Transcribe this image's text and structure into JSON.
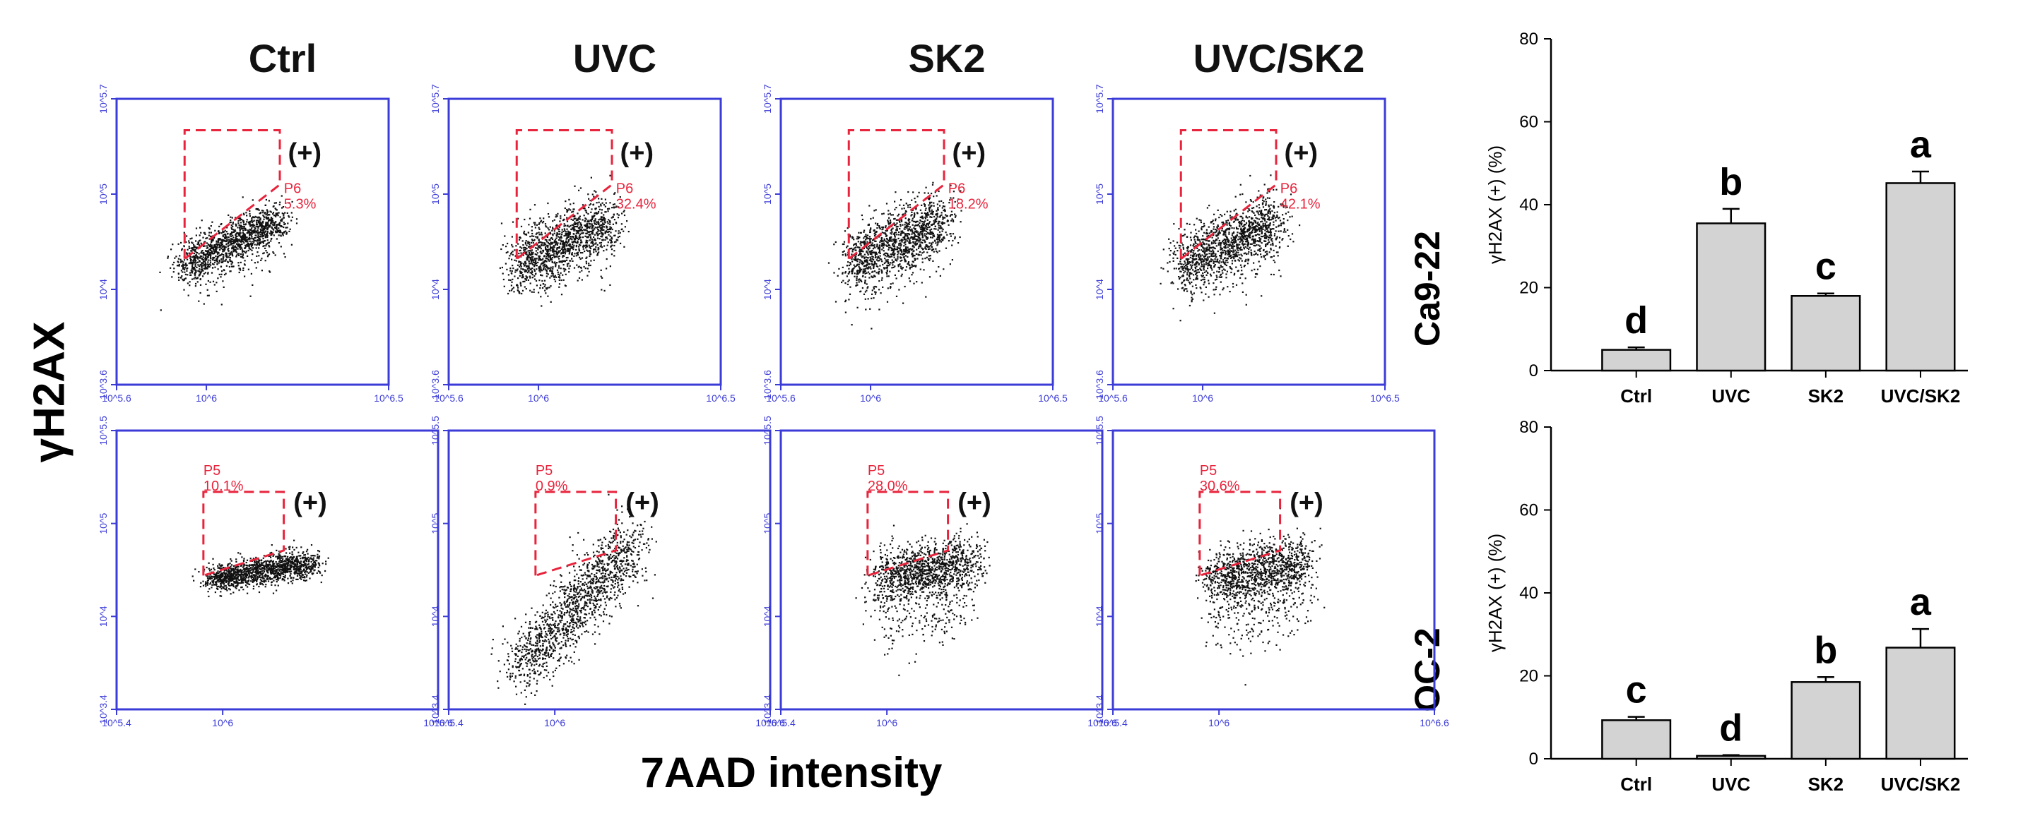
{
  "figure": {
    "y_label": "γH2AX",
    "x_label": "7AAD intensity",
    "conditions": [
      "Ctrl",
      "UVC",
      "SK2",
      "UVC/SK2"
    ],
    "flow": {
      "top_row": {
        "gate_name": "P6",
        "gate_percents": [
          "5.3%",
          "32.4%",
          "18.2%",
          "42.1%"
        ],
        "positive_label": "(+)",
        "x_ticks": [
          "10^5.6",
          "10^6",
          "10^6.5"
        ],
        "y_ticks": [
          "10^3.6",
          "10^4",
          "10^5",
          "10^5.7"
        ]
      },
      "bottom_row": {
        "gate_name": "P5",
        "gate_percents": [
          "10.1%",
          "0.9%",
          "28.0%",
          "30.6%"
        ],
        "positive_label": "(+)",
        "x_ticks": [
          "10^5.4",
          "10^6",
          "10^6.6"
        ],
        "y_ticks": [
          "10^3.4",
          "10^4",
          "10^5",
          "10^5.5"
        ]
      }
    },
    "colors": {
      "gate": "#e8243c",
      "axis": "#3b3bd8",
      "bar_fill": "#d3d3d3",
      "dots": "#111111"
    }
  },
  "chart_data": [
    {
      "type": "bar",
      "cell_line": "Ca9-22",
      "categories": [
        "Ctrl",
        "UVC",
        "SK2",
        "UVC/SK2"
      ],
      "values": [
        5,
        35.5,
        18,
        45.2
      ],
      "errors": [
        0.6,
        3.5,
        0.6,
        2.8
      ],
      "letters": [
        "d",
        "b",
        "c",
        "a"
      ],
      "ylabel": "γH2AX (+) (%)",
      "ylim": [
        0,
        80
      ],
      "yticks": [
        "0",
        "20",
        "40",
        "60",
        "80"
      ]
    },
    {
      "type": "bar",
      "cell_line": "OC-2",
      "categories": [
        "Ctrl",
        "UVC",
        "SK2",
        "UVC/SK2"
      ],
      "values": [
        9.3,
        0.7,
        18.5,
        26.8
      ],
      "errors": [
        0.8,
        0.2,
        1.2,
        4.5
      ],
      "letters": [
        "c",
        "d",
        "b",
        "a"
      ],
      "ylabel": "γH2AX (+) (%)",
      "ylim": [
        0,
        80
      ],
      "yticks": [
        "0",
        "20",
        "40",
        "60",
        "80"
      ]
    }
  ]
}
